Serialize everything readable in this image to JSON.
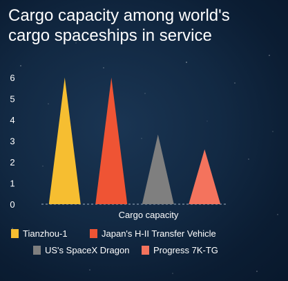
{
  "title_lines": [
    "Cargo capacity among world's",
    "cargo spaceships in service"
  ],
  "chart_data": {
    "type": "bar",
    "title": "Cargo capacity among world's cargo spaceships in service",
    "xlabel": "Cargo capacity",
    "ylabel": "",
    "ylim": [
      0,
      6
    ],
    "yticks": [
      0,
      1,
      2,
      3,
      4,
      5,
      6
    ],
    "grid": false,
    "legend_position": "bottom",
    "series": [
      {
        "name": "Tianzhou-1",
        "value": 6.0,
        "color": "#f6be31"
      },
      {
        "name": "Japan's H-II Transfer Vehicle",
        "value": 6.0,
        "color": "#ef5434"
      },
      {
        "name": "US's SpaceX Dragon",
        "value": 3.3,
        "color": "#7f7f7f"
      },
      {
        "name": "Progress 7K-TG",
        "value": 2.6,
        "color": "#f4735d"
      }
    ]
  }
}
